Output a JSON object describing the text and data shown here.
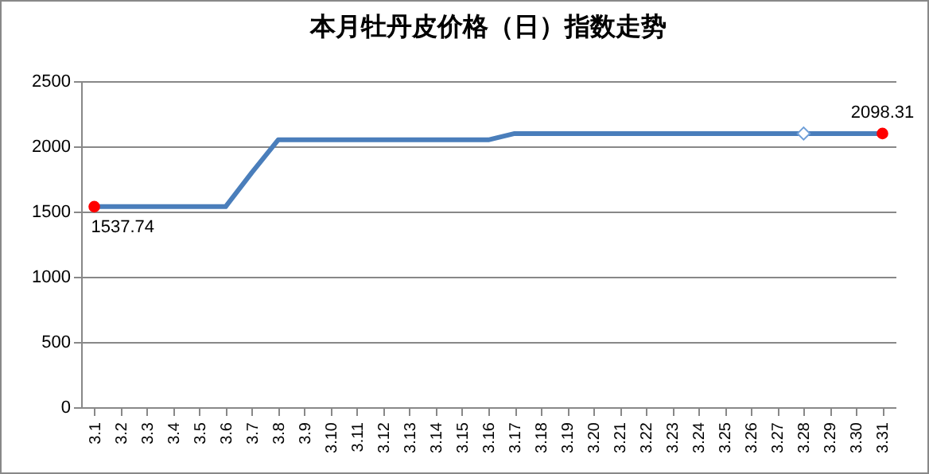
{
  "chart_data": {
    "type": "line",
    "title": "本月牡丹皮价格（日）指数走势",
    "categories": [
      "3.1",
      "3.2",
      "3.3",
      "3.4",
      "3.5",
      "3.6",
      "3.7",
      "3.8",
      "3.9",
      "3.10",
      "3.11",
      "3.12",
      "3.13",
      "3.14",
      "3.15",
      "3.16",
      "3.17",
      "3.18",
      "3.19",
      "3.20",
      "3.21",
      "3.22",
      "3.23",
      "3.24",
      "3.25",
      "3.26",
      "3.27",
      "3.28",
      "3.29",
      "3.30",
      "3.31"
    ],
    "series": [
      {
        "type": "line",
        "color": "#4a7ebb",
        "values": [
          1537.74,
          1537.74,
          1537.74,
          1537.74,
          1537.74,
          1537.74,
          1800,
          2050,
          2050,
          2050,
          2050,
          2050,
          2050,
          2050,
          2050,
          2050,
          2098.31,
          2098.31,
          2098.31,
          2098.31,
          2098.31,
          2098.31,
          2098.31,
          2098.31,
          2098.31,
          2098.31,
          2098.31,
          2098.31,
          2098.31,
          2098.31,
          2098.31
        ]
      },
      {
        "type": "scatter",
        "marker": "circle",
        "color": "#ff0000",
        "x": [
          "3.1",
          "3.31"
        ],
        "values": [
          1537.74,
          2098.31
        ],
        "value_labels": [
          "1537.74",
          "2098.31"
        ]
      },
      {
        "type": "scatter",
        "marker": "diamond",
        "color": "#6f9fd8",
        "x": [
          "3.28"
        ],
        "values": [
          2098.31
        ]
      }
    ],
    "ylim": [
      0,
      2500
    ],
    "yticks": [
      0,
      500,
      1000,
      1500,
      2000,
      2500
    ],
    "grid": "y"
  }
}
